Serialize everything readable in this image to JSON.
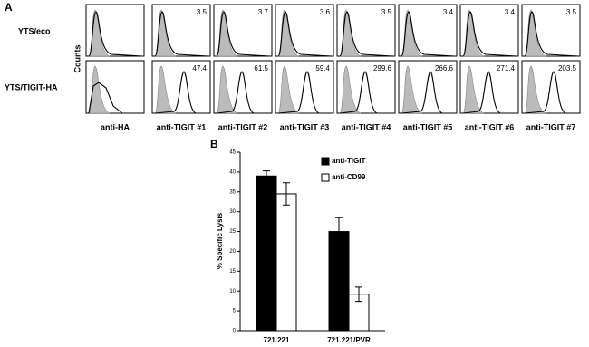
{
  "panel_a": {
    "label": "A",
    "row_labels": [
      "YTS/eco",
      "YTS/TIGIT-HA"
    ],
    "y_label": "Counts",
    "columns": [
      "anti-HA",
      "anti-TIGIT #1",
      "anti-TIGIT #2",
      "anti-TIGIT #3",
      "anti-TIGIT #4",
      "anti-TIGIT #5",
      "anti-TIGIT #6",
      "anti-TIGIT #7"
    ],
    "mfi": [
      [
        3.5,
        3.7,
        3.6,
        3.5,
        3.4,
        3.4,
        3.5
      ],
      [
        47.4,
        61.5,
        59.4,
        299.6,
        266.6,
        271.4,
        203.5
      ]
    ]
  },
  "chart_data": {
    "type": "bar",
    "label": "B",
    "y_label": "% Specific Lysis",
    "categories": [
      "721.221",
      "721.221/PVR"
    ],
    "series": [
      {
        "name": "anti-TIGIT",
        "color": "#000000",
        "values": [
          39,
          25
        ],
        "errors": [
          1.3,
          3.5
        ]
      },
      {
        "name": "anti-CD99",
        "color": "#ffffff",
        "values": [
          34.5,
          9.2
        ],
        "errors": [
          2.8,
          1.8
        ]
      }
    ],
    "ylim": [
      0,
      45
    ],
    "yticks": [
      0,
      5,
      10,
      15,
      20,
      25,
      30,
      35,
      40,
      45
    ]
  }
}
